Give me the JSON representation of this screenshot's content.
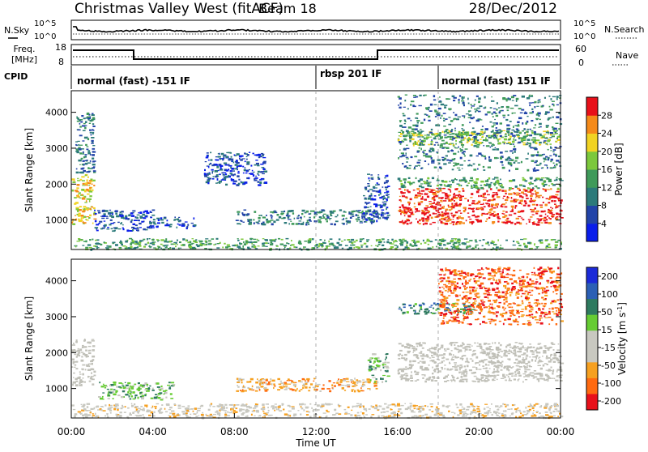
{
  "header": {
    "station": "Christmas Valley West (fitACF)",
    "beam": "Beam 18",
    "date": "28/Dec/2012"
  },
  "top_panels": {
    "nsky_label": "N.Sky",
    "nsearch_label": "N.Search",
    "noise_ticks": [
      "10^5",
      "10^0"
    ],
    "freq_label": "Freq.",
    "freq_unit": "[MHz]",
    "freq_ticks": [
      "18",
      "8"
    ],
    "nave_label": "Nave",
    "nave_ticks": [
      "60",
      "0"
    ],
    "cpid_label": "CPID",
    "cpid_segments": [
      {
        "label": "normal (fast) -151 IF",
        "start_h": 0,
        "end_h": 12
      },
      {
        "label": "rbsp 201 IF",
        "start_h": 12,
        "end_h": 18
      },
      {
        "label": "normal (fast) 151 IF",
        "start_h": 18,
        "end_h": 24
      }
    ]
  },
  "colors": {
    "power": [
      "#0a1eea",
      "#2244a8",
      "#2c7a7a",
      "#3f9a5a",
      "#7cc83c",
      "#f1d323",
      "#f58a1a",
      "#e8101a"
    ],
    "velocity": [
      "#e8101a",
      "#ff6a10",
      "#f6a020",
      "#c8c8c0",
      "#c8c8c0",
      "#66cc33",
      "#2e7a5f",
      "#2b5fb5",
      "#1b2ad8"
    ],
    "ground_scatter": "#c0c0b8"
  },
  "chart_data": [
    {
      "type": "heatmap",
      "name": "power",
      "ylabel": "Slant Range [km]",
      "yticks": [
        1000,
        2000,
        3000,
        4000
      ],
      "ylim": [
        180,
        4600
      ],
      "xlim": [
        0,
        24
      ],
      "colorbar_label": "Power [dB]",
      "colorbar_ticks": [
        4,
        8,
        12,
        16,
        20,
        24,
        28
      ],
      "colorbar_range": [
        0,
        32
      ],
      "features": [
        {
          "t0": 0.0,
          "t1": 1.1,
          "r0": 900,
          "r1": 2300,
          "v": 20
        },
        {
          "t0": 0.2,
          "t1": 1.1,
          "r0": 2300,
          "r1": 4000,
          "v": 10
        },
        {
          "t0": 1.1,
          "t1": 4.0,
          "r0": 700,
          "r1": 1300,
          "v": 6
        },
        {
          "t0": 4.0,
          "t1": 6.0,
          "r0": 800,
          "r1": 1100,
          "v": 6
        },
        {
          "t0": 8.0,
          "t1": 15.0,
          "r0": 900,
          "r1": 1300,
          "v": 10
        },
        {
          "t0": 6.5,
          "t1": 9.5,
          "r0": 2000,
          "r1": 2900,
          "v": 6
        },
        {
          "t0": 14.3,
          "t1": 15.5,
          "r0": 1000,
          "r1": 2300,
          "v": 6
        },
        {
          "t0": 16.0,
          "t1": 24.0,
          "r0": 900,
          "r1": 1900,
          "v": 28
        },
        {
          "t0": 16.0,
          "t1": 24.0,
          "r0": 1900,
          "r1": 2200,
          "v": 12
        },
        {
          "t0": 16.0,
          "t1": 24.0,
          "r0": 3100,
          "r1": 3500,
          "v": 16
        },
        {
          "t0": 16.0,
          "t1": 24.0,
          "r0": 2400,
          "r1": 4500,
          "v": 8
        },
        {
          "t0": 0.0,
          "t1": 24.0,
          "r0": 200,
          "r1": 500,
          "v": 14
        }
      ]
    },
    {
      "type": "heatmap",
      "name": "velocity",
      "ylabel": "Slant Range [km]",
      "yticks": [
        1000,
        2000,
        3000,
        4000
      ],
      "ylim": [
        180,
        4600
      ],
      "xlim": [
        0,
        24
      ],
      "xticks": [
        "00:00",
        "04:00",
        "08:00",
        "12:00",
        "16:00",
        "20:00",
        "00:00"
      ],
      "xlabel": "Time UT",
      "colorbar_label": "Velocity [m s",
      "colorbar_label_sup": "-1",
      "colorbar_ticks": [
        "200",
        "100",
        "50",
        "15",
        "-15",
        "-50",
        "-100",
        "-200"
      ],
      "features": [
        {
          "t0": 0.0,
          "t1": 1.1,
          "r0": 1100,
          "r1": 2400,
          "v": "gs"
        },
        {
          "t0": 1.3,
          "t1": 5.0,
          "r0": 700,
          "r1": 1200,
          "v": 40
        },
        {
          "t0": 8.0,
          "t1": 15.0,
          "r0": 950,
          "r1": 1300,
          "v": -60
        },
        {
          "t0": 14.5,
          "t1": 15.5,
          "r0": 1200,
          "r1": 2000,
          "v": 40
        },
        {
          "t0": 16.0,
          "t1": 24.0,
          "r0": 1200,
          "r1": 2300,
          "v": "gs"
        },
        {
          "t0": 16.0,
          "t1": 20.0,
          "r0": 3100,
          "r1": 3400,
          "v": 100
        },
        {
          "t0": 18.0,
          "t1": 24.0,
          "r0": 2800,
          "r1": 4400,
          "v": -150
        },
        {
          "t0": 0.0,
          "t1": 24.0,
          "r0": 200,
          "r1": 600,
          "v": -40
        }
      ]
    }
  ]
}
